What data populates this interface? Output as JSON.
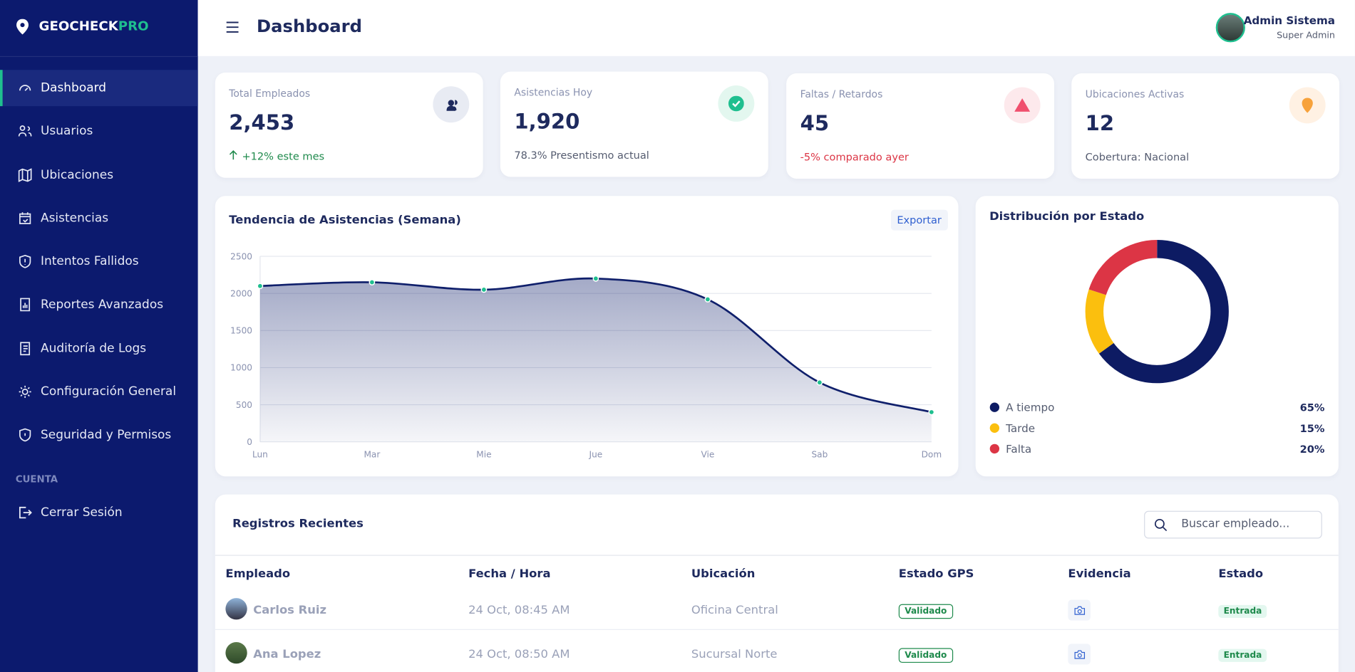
{
  "sidebar": {
    "brand": "GEOCHECK",
    "brand_accent": "PRO",
    "menu": [
      "Dashboard",
      "Usuarios",
      "Ubicaciones",
      "Asistencias",
      "Intentos Fallidos",
      "Reportes Avanzados",
      "Auditoría de Logs",
      "Configuración General",
      "Seguridad y Permisos"
    ],
    "section": "CUENTA",
    "logout": "Cerrar Sesión"
  },
  "header": {
    "title": "Dashboard",
    "user_name": "Admin Sistema",
    "user_role": "Super Admin"
  },
  "stats": [
    {
      "label": "Total Empleados",
      "value": "2,453",
      "note": "+12% este mes"
    },
    {
      "label": "Asistencias Hoy",
      "value": "1,920",
      "note": "78.3% Presentismo actual"
    },
    {
      "label": "Faltas / Retardos",
      "value": "45",
      "note": "-5% comparado ayer"
    },
    {
      "label": "Ubicaciones Activas",
      "value": "12",
      "note": "Cobertura: Nacional"
    }
  ],
  "line_chart": {
    "type": "line",
    "title": "Tendencia de Asistencias (Semana)",
    "action": "Exportar",
    "categories": [
      "Lun",
      "Mar",
      "Mie",
      "Jue",
      "Vie",
      "Sab",
      "Dom"
    ],
    "values": [
      2100,
      2150,
      2050,
      2200,
      1920,
      800,
      400
    ],
    "color": "#0f1f6b",
    "point_color": "#1fbf8f",
    "ylim": [
      0,
      2500
    ],
    "yticks": [
      0,
      500,
      1000,
      1500,
      2000,
      2500
    ],
    "grid": true
  },
  "donut_chart": {
    "type": "donut",
    "title": "Distribución por Estado",
    "categories": [
      "A tiempo",
      "Tarde",
      "Falta"
    ],
    "values": [
      65,
      15,
      20
    ],
    "value_labels": [
      "65%",
      "15%",
      "20%"
    ],
    "colors": [
      "#0d1b63",
      "#fbbf0e",
      "#dc3545"
    ]
  },
  "table": {
    "title": "Registros Recientes",
    "search_placeholder": "Buscar empleado...",
    "columns": [
      "Empleado",
      "Fecha / Hora",
      "Ubicación",
      "Estado GPS",
      "Evidencia",
      "Estado"
    ],
    "rows": [
      [
        "Carlos Ruiz",
        "24 Oct, 08:45 AM",
        "Oficina Central",
        "Validado",
        "Entrada"
      ],
      [
        "Ana Lopez",
        "24 Oct, 08:50 AM",
        "Sucursal Norte",
        "Validado",
        "Entrada"
      ]
    ]
  }
}
